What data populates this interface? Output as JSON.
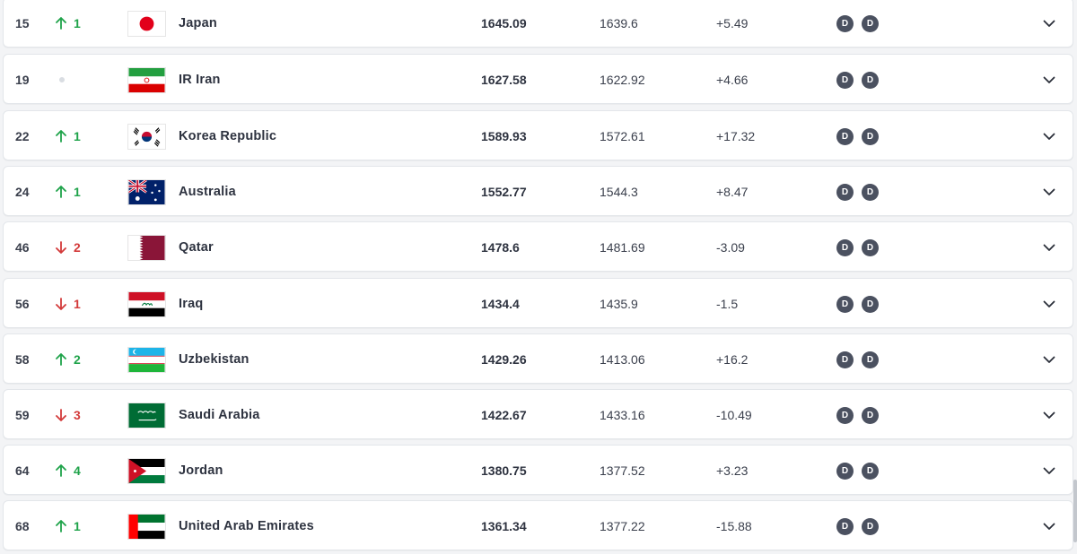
{
  "colors": {
    "up": "#1fa34a",
    "down": "#d33a3a",
    "badge_bg": "#4b5160",
    "row_bg": "#ffffff",
    "page_bg": "#f3f4f6"
  },
  "rows": [
    {
      "rank": "15",
      "direction": "up",
      "move": "1",
      "flag": "japan-flag",
      "team": "Japan",
      "total_points": "1645.09",
      "previous_points": "1639.6",
      "points_change": "+5.49",
      "badges": [
        "D",
        "D"
      ]
    },
    {
      "rank": "19",
      "direction": "none",
      "move": "",
      "flag": "iran-flag",
      "team": "IR Iran",
      "total_points": "1627.58",
      "previous_points": "1622.92",
      "points_change": "+4.66",
      "badges": [
        "D",
        "D"
      ]
    },
    {
      "rank": "22",
      "direction": "up",
      "move": "1",
      "flag": "korea-republic-flag",
      "team": "Korea Republic",
      "total_points": "1589.93",
      "previous_points": "1572.61",
      "points_change": "+17.32",
      "badges": [
        "D",
        "D"
      ]
    },
    {
      "rank": "24",
      "direction": "up",
      "move": "1",
      "flag": "australia-flag",
      "team": "Australia",
      "total_points": "1552.77",
      "previous_points": "1544.3",
      "points_change": "+8.47",
      "badges": [
        "D",
        "D"
      ]
    },
    {
      "rank": "46",
      "direction": "down",
      "move": "2",
      "flag": "qatar-flag",
      "team": "Qatar",
      "total_points": "1478.6",
      "previous_points": "1481.69",
      "points_change": "-3.09",
      "badges": [
        "D",
        "D"
      ]
    },
    {
      "rank": "56",
      "direction": "down",
      "move": "1",
      "flag": "iraq-flag",
      "team": "Iraq",
      "total_points": "1434.4",
      "previous_points": "1435.9",
      "points_change": "-1.5",
      "badges": [
        "D",
        "D"
      ]
    },
    {
      "rank": "58",
      "direction": "up",
      "move": "2",
      "flag": "uzbekistan-flag",
      "team": "Uzbekistan",
      "total_points": "1429.26",
      "previous_points": "1413.06",
      "points_change": "+16.2",
      "badges": [
        "D",
        "D"
      ]
    },
    {
      "rank": "59",
      "direction": "down",
      "move": "3",
      "flag": "saudi-arabia-flag",
      "team": "Saudi Arabia",
      "total_points": "1422.67",
      "previous_points": "1433.16",
      "points_change": "-10.49",
      "badges": [
        "D",
        "D"
      ]
    },
    {
      "rank": "64",
      "direction": "up",
      "move": "4",
      "flag": "jordan-flag",
      "team": "Jordan",
      "total_points": "1380.75",
      "previous_points": "1377.52",
      "points_change": "+3.23",
      "badges": [
        "D",
        "D"
      ]
    },
    {
      "rank": "68",
      "direction": "up",
      "move": "1",
      "flag": "uae-flag",
      "team": "United Arab Emirates",
      "total_points": "1361.34",
      "previous_points": "1377.22",
      "points_change": "-15.88",
      "badges": [
        "D",
        "D"
      ]
    }
  ]
}
